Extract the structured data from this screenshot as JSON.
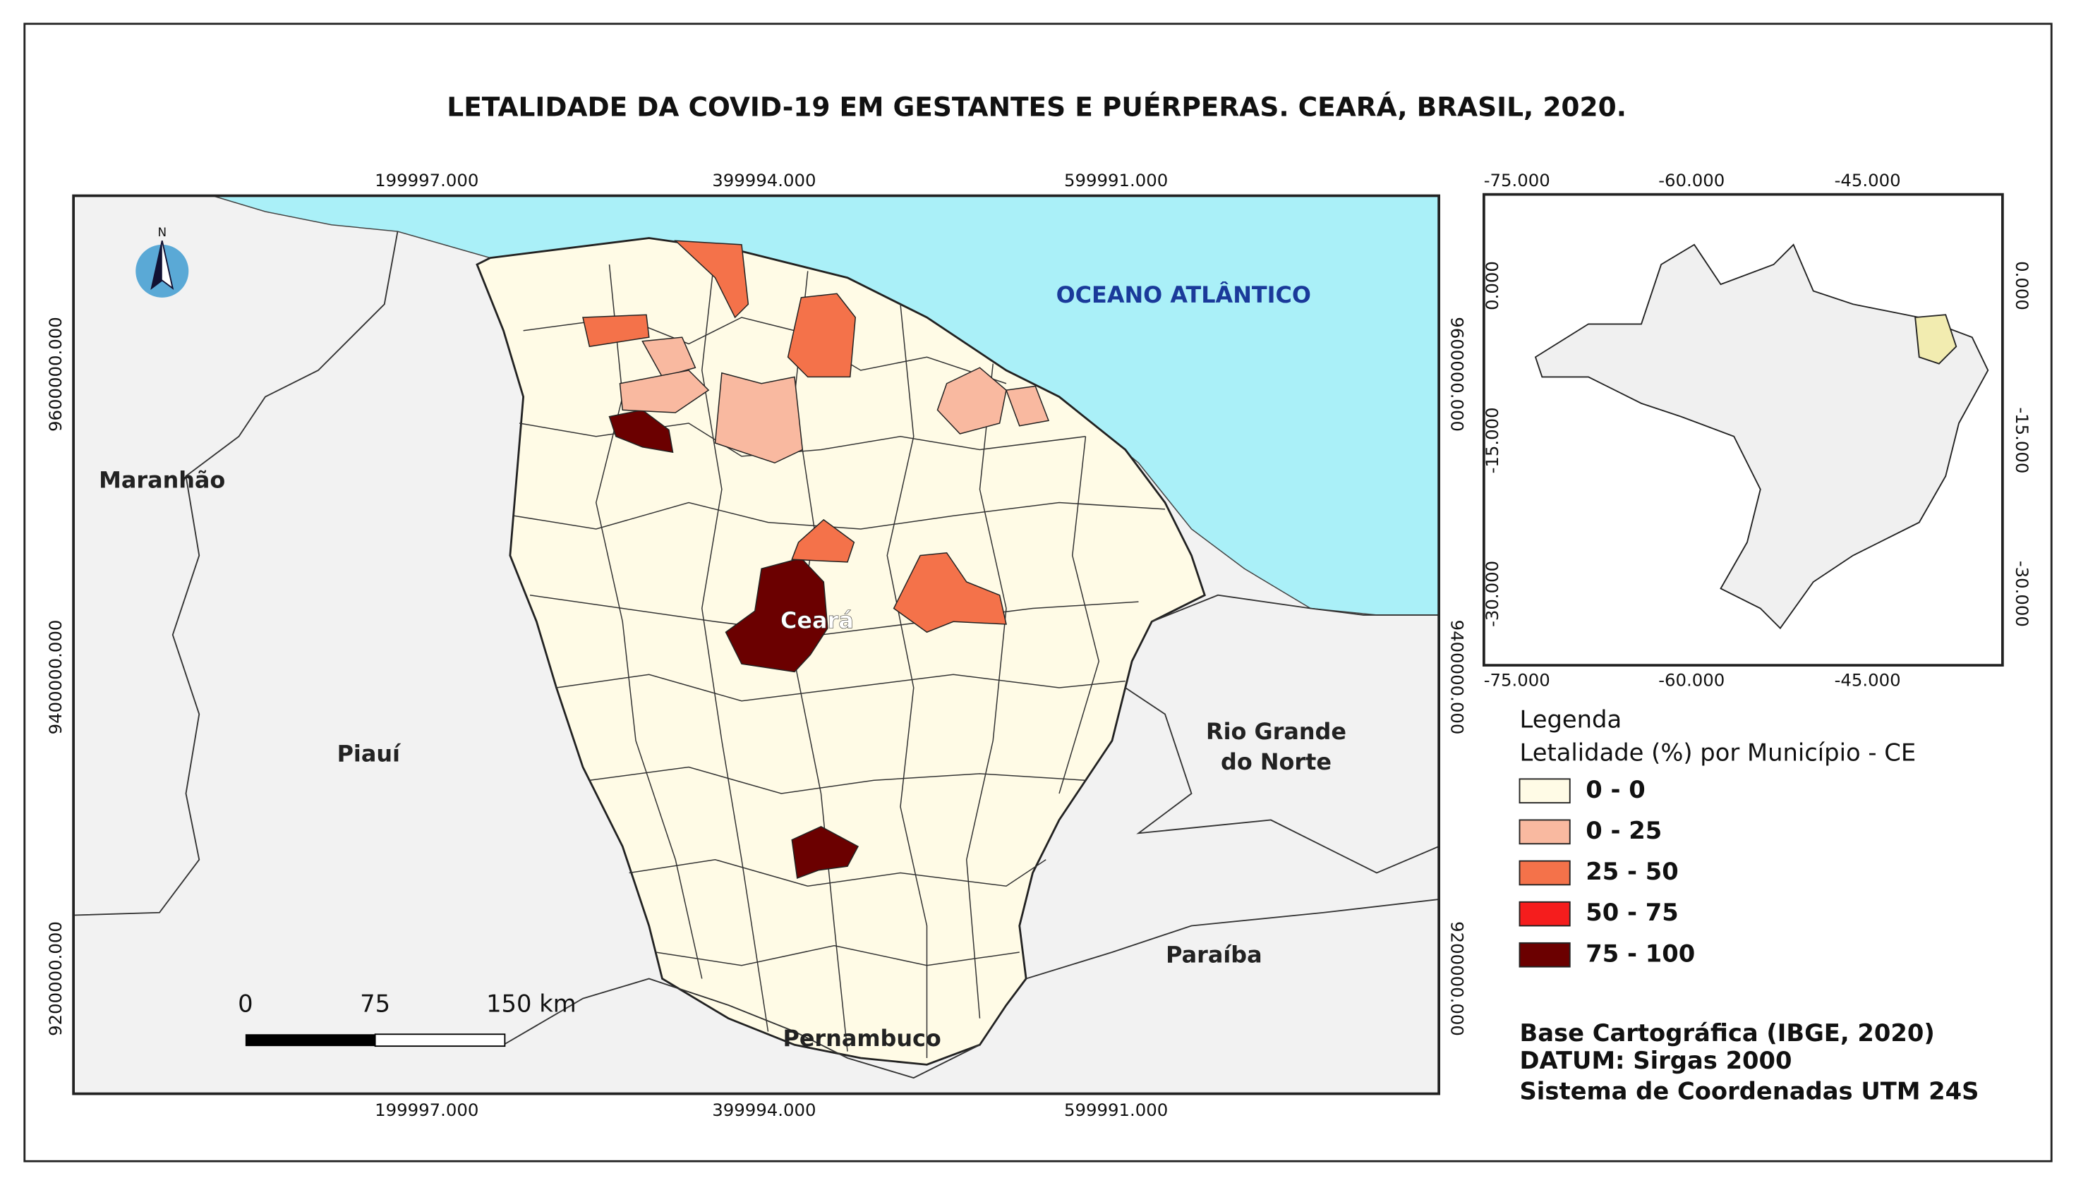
{
  "title": "LETALIDADE DA COVID-19 EM GESTANTES E PUÉRPERAS. CEARÁ, BRASIL, 2020.",
  "main_map": {
    "x_ticks": [
      "199997.000",
      "399994.000",
      "599991.000"
    ],
    "y_ticks": [
      "9600000.000",
      "9400000.000",
      "9200000.000"
    ],
    "labels": {
      "ocean": "OCEANO ATLÂNTICO",
      "maranhao": "Maranhão",
      "piaui": "Piauí",
      "ceara": "Ceará",
      "rn_line1": "Rio Grande",
      "rn_line2": "do Norte",
      "paraiba": "Paraíba",
      "pernambuco": "Pernambuco"
    },
    "north": "N",
    "scale_bar": [
      "0",
      "75",
      "150 km"
    ]
  },
  "inset_map": {
    "x_ticks": [
      "-75.000",
      "-60.000",
      "-45.000"
    ],
    "y_ticks": [
      "0.000",
      "-15.000",
      "-30.000"
    ]
  },
  "legend": {
    "title": "Legenda",
    "subtitle": "Letalidade (%) por Município - CE",
    "items": [
      {
        "label": "0 - 0",
        "color": "#fffbe6"
      },
      {
        "label": "0 - 25",
        "color": "#f9b9a0"
      },
      {
        "label": "25 - 50",
        "color": "#f4724a"
      },
      {
        "label": "50 - 75",
        "color": "#f51d1d"
      },
      {
        "label": "75 - 100",
        "color": "#6b0000"
      }
    ]
  },
  "credits": [
    "Base Cartográfica (IBGE, 2020)",
    "DATUM: Sirgas 2000",
    "Sistema de Coordenadas UTM 24S"
  ]
}
